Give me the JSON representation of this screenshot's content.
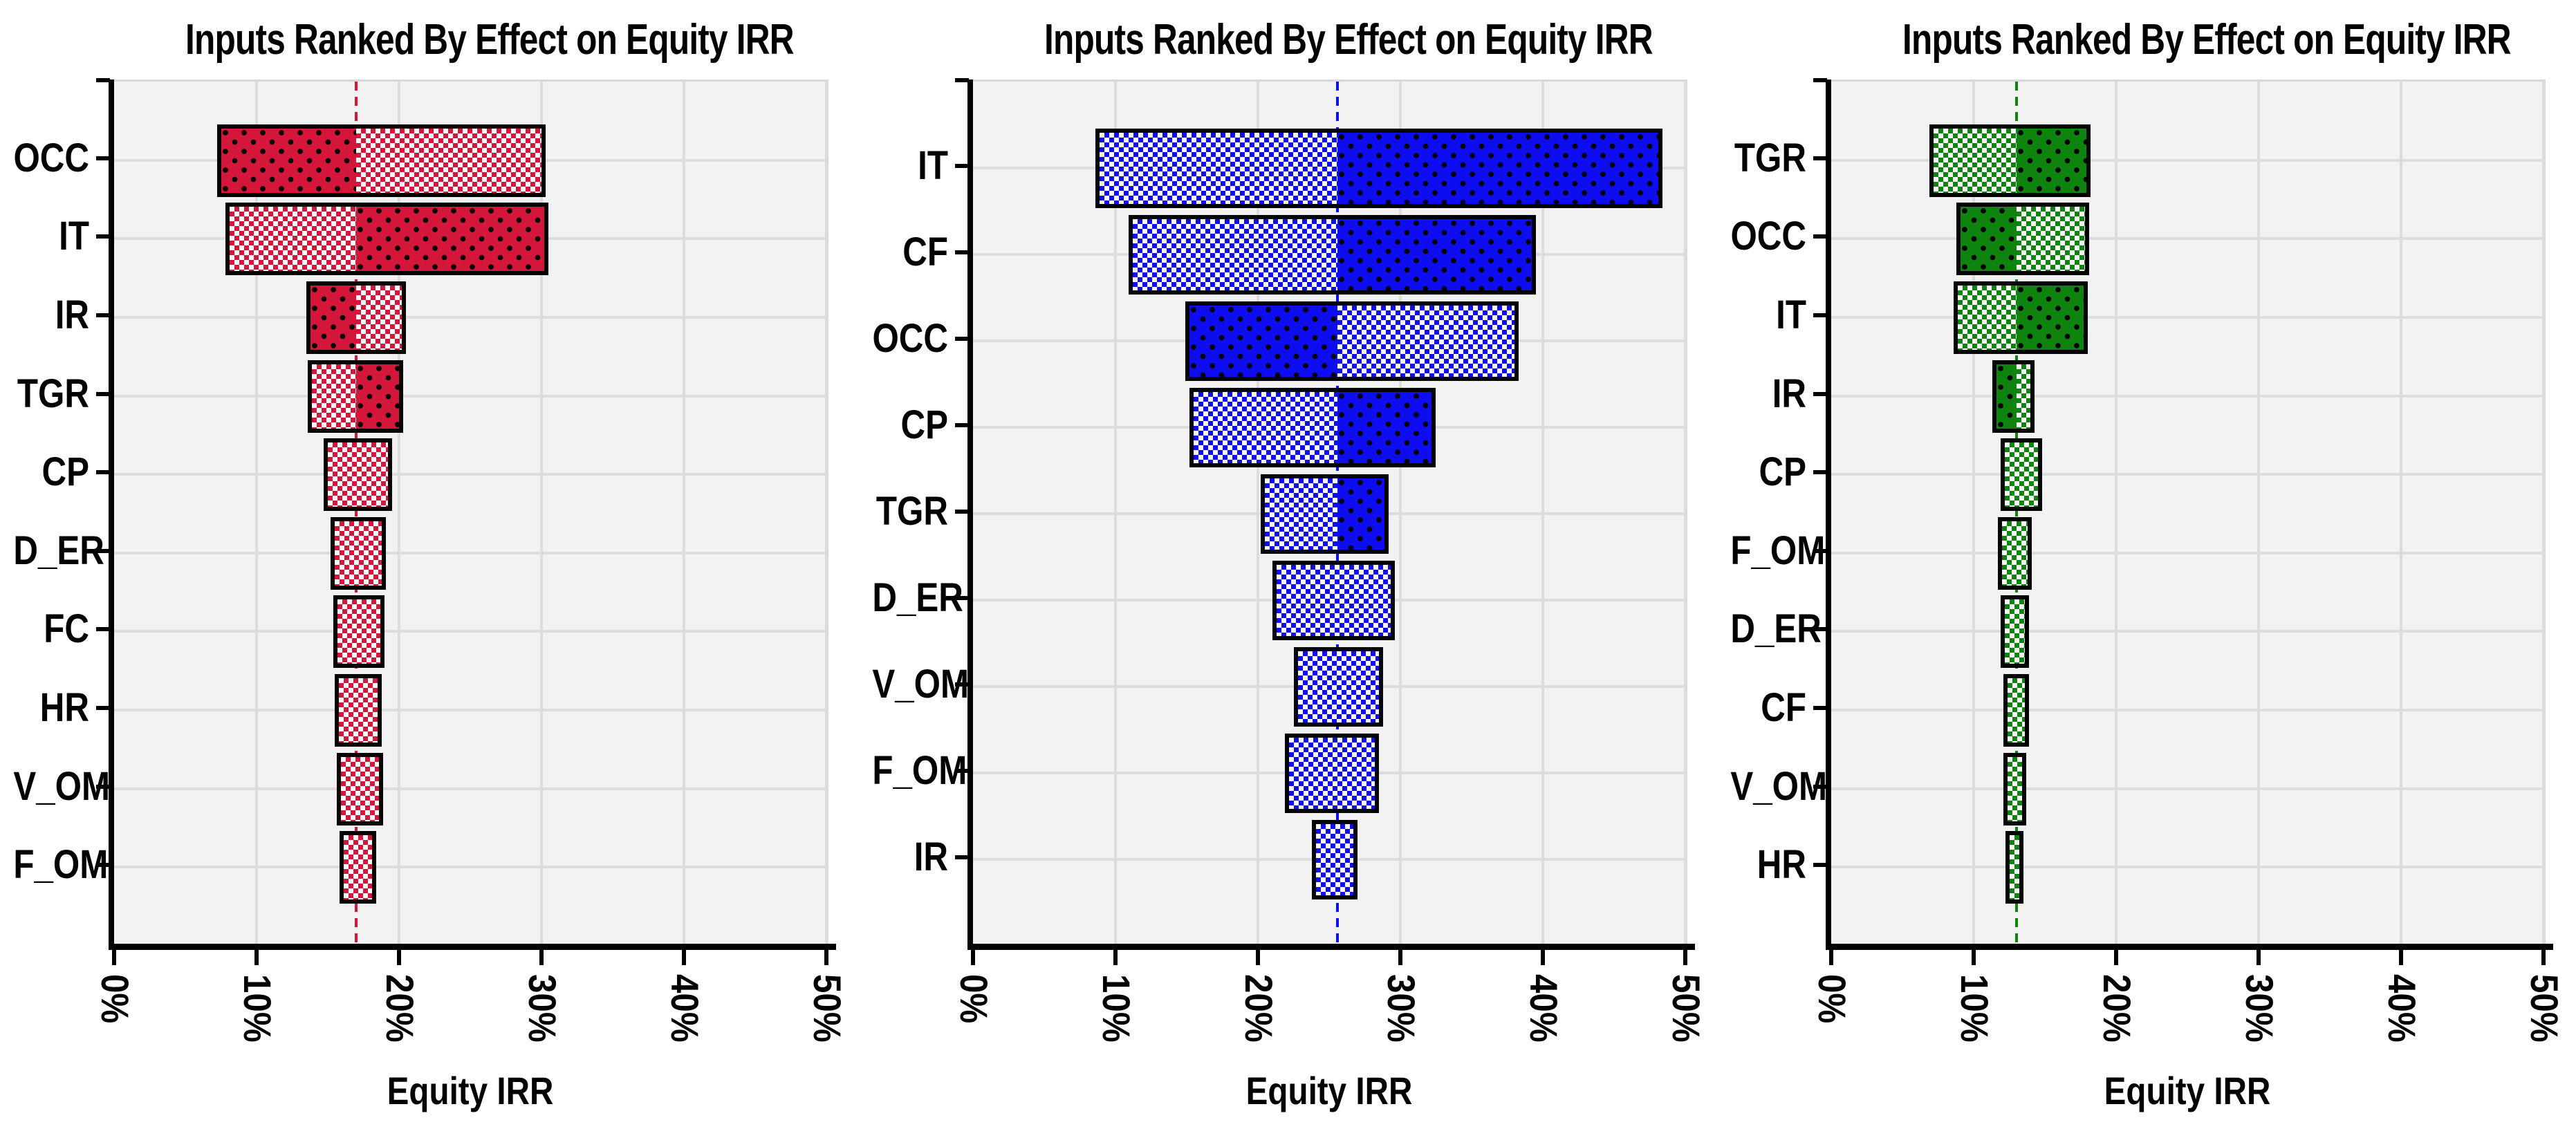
{
  "figure": {
    "background": "#ffffff",
    "description": "Three tornado sensitivity charts ranking inputs by effect on Equity IRR"
  },
  "chart_data": [
    {
      "type": "bar",
      "variant": "tornado",
      "title": "Inputs Ranked By Effect on Equity IRR",
      "xlabel": "Equity IRR",
      "xlim": [
        0,
        50
      ],
      "xticks": [
        "0%",
        "10%",
        "20%",
        "30%",
        "40%",
        "50%"
      ],
      "grid": true,
      "legend": "none",
      "baseline_pct": 17.0,
      "color_dark": "#d4163a",
      "bars": [
        {
          "label": "OCC",
          "low_pct": 7.5,
          "high_pct": 30.0,
          "dark_side": "left"
        },
        {
          "label": "IT",
          "low_pct": 8.1,
          "high_pct": 30.2,
          "dark_side": "right"
        },
        {
          "label": "IR",
          "low_pct": 13.8,
          "high_pct": 20.2,
          "dark_side": "left"
        },
        {
          "label": "TGR",
          "low_pct": 13.9,
          "high_pct": 20.0,
          "dark_side": "right"
        },
        {
          "label": "CP",
          "low_pct": 15.0,
          "high_pct": 19.2,
          "dark_side": "none"
        },
        {
          "label": "D_ER",
          "low_pct": 15.5,
          "high_pct": 18.8,
          "dark_side": "none"
        },
        {
          "label": "FC",
          "low_pct": 15.7,
          "high_pct": 18.7,
          "dark_side": "none"
        },
        {
          "label": "HR",
          "low_pct": 15.8,
          "high_pct": 18.5,
          "dark_side": "none"
        },
        {
          "label": "V_OM",
          "low_pct": 15.9,
          "high_pct": 18.6,
          "dark_side": "none"
        },
        {
          "label": "F_OM",
          "low_pct": 16.1,
          "high_pct": 18.1,
          "dark_side": "none"
        }
      ]
    },
    {
      "type": "bar",
      "variant": "tornado",
      "title": "Inputs Ranked By Effect on Equity IRR",
      "xlabel": "Equity IRR",
      "xlim": [
        0,
        50
      ],
      "xticks": [
        "0%",
        "10%",
        "20%",
        "30%",
        "40%",
        "50%"
      ],
      "grid": true,
      "legend": "none",
      "baseline_pct": 25.6,
      "color_dark": "#0d0df0",
      "bars": [
        {
          "label": "IT",
          "low_pct": 8.9,
          "high_pct": 48.1,
          "dark_side": "right"
        },
        {
          "label": "CF",
          "low_pct": 11.2,
          "high_pct": 39.2,
          "dark_side": "right"
        },
        {
          "label": "OCC",
          "low_pct": 15.2,
          "high_pct": 38.0,
          "dark_side": "left"
        },
        {
          "label": "CP",
          "low_pct": 15.5,
          "high_pct": 32.2,
          "dark_side": "right"
        },
        {
          "label": "TGR",
          "low_pct": 20.5,
          "high_pct": 28.9,
          "dark_side": "right"
        },
        {
          "label": "D_ER",
          "low_pct": 21.3,
          "high_pct": 29.3,
          "dark_side": "none"
        },
        {
          "label": "V_OM",
          "low_pct": 22.8,
          "high_pct": 28.5,
          "dark_side": "none"
        },
        {
          "label": "F_OM",
          "low_pct": 22.2,
          "high_pct": 28.2,
          "dark_side": "none"
        },
        {
          "label": "IR",
          "low_pct": 24.1,
          "high_pct": 26.7,
          "dark_side": "none"
        }
      ]
    },
    {
      "type": "bar",
      "variant": "tornado",
      "title": "Inputs Ranked By Effect on Equity IRR",
      "xlabel": "Equity IRR",
      "xlim": [
        0,
        50
      ],
      "xticks": [
        "0%",
        "10%",
        "20%",
        "30%",
        "40%",
        "50%"
      ],
      "grid": true,
      "legend": "none",
      "baseline_pct": 13.0,
      "color_dark": "#0e830e",
      "bars": [
        {
          "label": "TGR",
          "low_pct": 7.2,
          "high_pct": 17.9,
          "dark_side": "right"
        },
        {
          "label": "OCC",
          "low_pct": 9.1,
          "high_pct": 17.8,
          "dark_side": "left"
        },
        {
          "label": "IT",
          "low_pct": 8.9,
          "high_pct": 17.7,
          "dark_side": "right"
        },
        {
          "label": "IR",
          "low_pct": 11.6,
          "high_pct": 14.0,
          "dark_side": "left"
        },
        {
          "label": "CP",
          "low_pct": 12.2,
          "high_pct": 14.5,
          "dark_side": "none"
        },
        {
          "label": "F_OM",
          "low_pct": 12.0,
          "high_pct": 13.8,
          "dark_side": "none"
        },
        {
          "label": "D_ER",
          "low_pct": 12.2,
          "high_pct": 13.6,
          "dark_side": "none"
        },
        {
          "label": "CF",
          "low_pct": 12.4,
          "high_pct": 13.6,
          "dark_side": "none"
        },
        {
          "label": "V_OM",
          "low_pct": 12.4,
          "high_pct": 13.4,
          "dark_side": "none"
        },
        {
          "label": "HR",
          "low_pct": 12.5,
          "high_pct": 13.2,
          "dark_side": "none"
        }
      ]
    }
  ]
}
